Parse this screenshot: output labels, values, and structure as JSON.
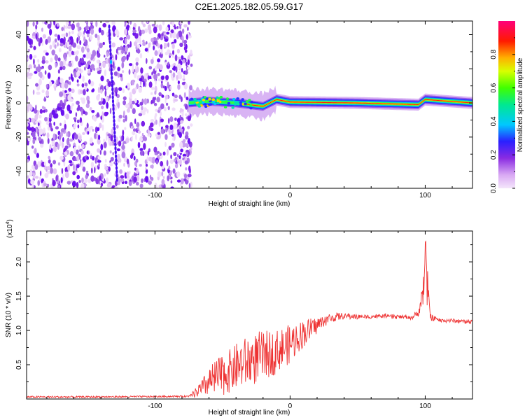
{
  "figure": {
    "title": "C2E1.2025.182.05.59.G17"
  },
  "chart_data": [
    {
      "type": "heatmap",
      "title": "C2E1.2025.182.05.59.G17",
      "xlabel": "Height of straight line (km)",
      "ylabel": "Frequency (Hz)",
      "xlim": [
        -195,
        135
      ],
      "ylim": [
        -50,
        48
      ],
      "xticks": [
        -100,
        0,
        100
      ],
      "yticks": [
        -40,
        -20,
        0,
        20,
        40
      ],
      "grid": false,
      "colorbar": {
        "label": "Normalized spectral amplitude",
        "range": [
          0.0,
          1.0
        ],
        "ticks": [
          0.0,
          0.2,
          0.4,
          0.6,
          0.8
        ],
        "colors": [
          "#ee82ee",
          "#8a2be2",
          "#0000ff",
          "#00ffff",
          "#00ff00",
          "#ffff00",
          "#ff0000",
          "#ff00aa"
        ]
      },
      "regions": [
        {
          "name": "noise",
          "x_range": [
            -195,
            -75
          ],
          "y_range": [
            -50,
            48
          ],
          "amplitude": 0.15
        },
        {
          "name": "signal",
          "x_range": [
            -75,
            135
          ],
          "center_freq": [
            [
              -75,
              0
            ],
            [
              -60,
              1
            ],
            [
              -40,
              0
            ],
            [
              -20,
              -2
            ],
            [
              -10,
              2
            ],
            [
              0,
              0.5
            ],
            [
              50,
              0
            ],
            [
              95,
              -1
            ],
            [
              100,
              2
            ],
            [
              135,
              0
            ]
          ],
          "amplitude": 0.9
        }
      ]
    },
    {
      "type": "line",
      "xlabel": "Height of straight line (km)",
      "ylabel": "SNR (10 * v/v)",
      "multiplier_label": "(x10",
      "multiplier_exp": "4",
      "multiplier_close": ")",
      "xlim": [
        -195,
        135
      ],
      "ylim": [
        0,
        24500
      ],
      "xticks": [
        -100,
        0,
        100
      ],
      "yticks": [
        0.5,
        1.0,
        1.5,
        2.0
      ],
      "grid": false,
      "series": [
        {
          "color": "#ee3333",
          "x": [
            -195,
            -150,
            -100,
            -75,
            -65,
            -60,
            -55,
            -50,
            -45,
            -40,
            -35,
            -30,
            -25,
            -20,
            -15,
            -10,
            -5,
            0,
            5,
            10,
            15,
            20,
            25,
            30,
            35,
            40,
            50,
            60,
            70,
            80,
            90,
            95,
            98,
            100,
            102,
            104,
            110,
            120,
            135
          ],
          "values": [
            300,
            300,
            350,
            400,
            1500,
            2500,
            3000,
            3500,
            4000,
            4700,
            5200,
            5600,
            6000,
            6300,
            6600,
            7000,
            7500,
            8000,
            8800,
            9600,
            10200,
            10800,
            11400,
            11800,
            12000,
            12100,
            12000,
            12000,
            12100,
            12000,
            11900,
            12500,
            15000,
            20000,
            15000,
            12000,
            11500,
            11400,
            11300
          ],
          "noise": [
            0,
            0,
            0,
            0,
            1400,
            2200,
            2800,
            3000,
            3200,
            3400,
            3600,
            3800,
            3800,
            3600,
            3400,
            3200,
            3000,
            2800,
            2400,
            2000,
            1600,
            1200,
            900,
            700,
            500,
            400,
            350,
            300,
            300,
            300,
            300,
            400,
            2000,
            5000,
            3000,
            600,
            300,
            300,
            300
          ]
        }
      ]
    }
  ]
}
